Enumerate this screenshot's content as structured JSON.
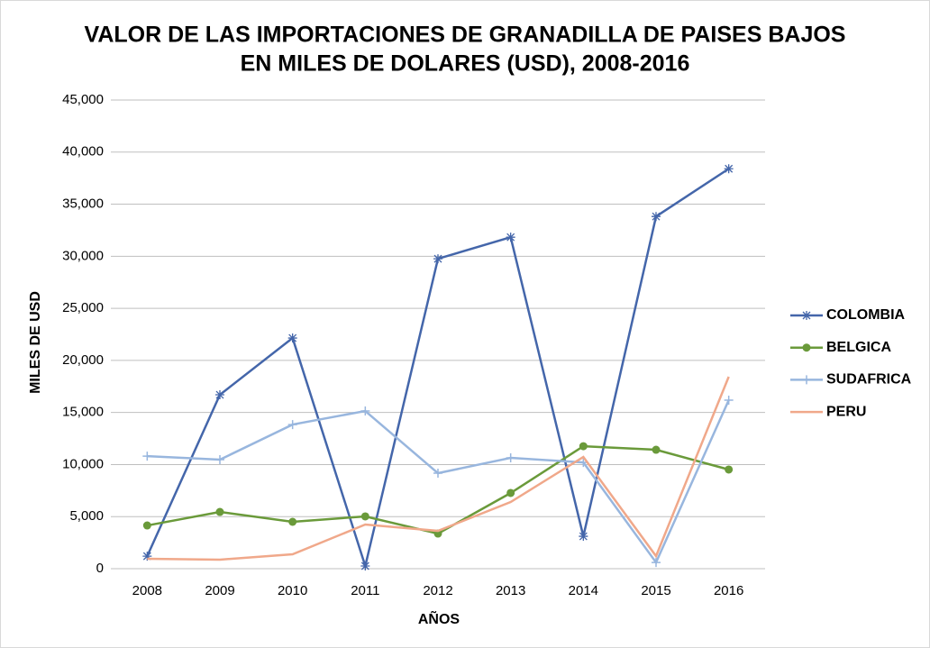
{
  "chart_data": {
    "type": "line",
    "title": "VALOR DE LAS IMPORTACIONES DE GRANADILLA DE PAISES BAJOS",
    "subtitle": "EN MILES DE DOLARES (USD), 2008-2016",
    "x_label": "AÑOS",
    "y_label": "MILES DE USD",
    "categories": [
      "2008",
      "2009",
      "2010",
      "2011",
      "2012",
      "2013",
      "2014",
      "2015",
      "2016"
    ],
    "series": [
      {
        "name": "COLOMBIA",
        "color": "#4466aa",
        "marker": "star",
        "values": [
          1200,
          16700,
          22150,
          260,
          29760,
          31830,
          3110,
          33820,
          38400
        ]
      },
      {
        "name": "BELGICA",
        "color": "#6a9a3a",
        "marker": "circle",
        "values": [
          4150,
          5450,
          4500,
          5020,
          3370,
          7270,
          11760,
          11420,
          9520
        ]
      },
      {
        "name": "SUDAFRICA",
        "color": "#98b6de",
        "marker": "plus",
        "values": [
          10810,
          10470,
          13840,
          15140,
          9170,
          10640,
          10200,
          600,
          16180
        ]
      },
      {
        "name": "PERU",
        "color": "#f0a88a",
        "marker": "none",
        "values": [
          950,
          870,
          1380,
          4240,
          3630,
          6400,
          10730,
          1210,
          18430
        ]
      }
    ],
    "ylim": [
      0,
      45000
    ],
    "yticks": [
      0,
      {
        "value": 5000,
        "label": "5,000"
      },
      {
        "value": 10000,
        "label": "10,000"
      },
      {
        "value": 15000,
        "label": "15,000"
      },
      {
        "value": 20000,
        "label": "20,000"
      },
      {
        "value": 25000,
        "label": "25,000"
      },
      {
        "value": 30000,
        "label": "30,000"
      },
      {
        "value": 35000,
        "label": "35,000"
      },
      {
        "value": 40000,
        "label": "40,000"
      },
      {
        "value": 45000,
        "label": "45,000"
      }
    ],
    "grid": true,
    "legend": "right"
  }
}
